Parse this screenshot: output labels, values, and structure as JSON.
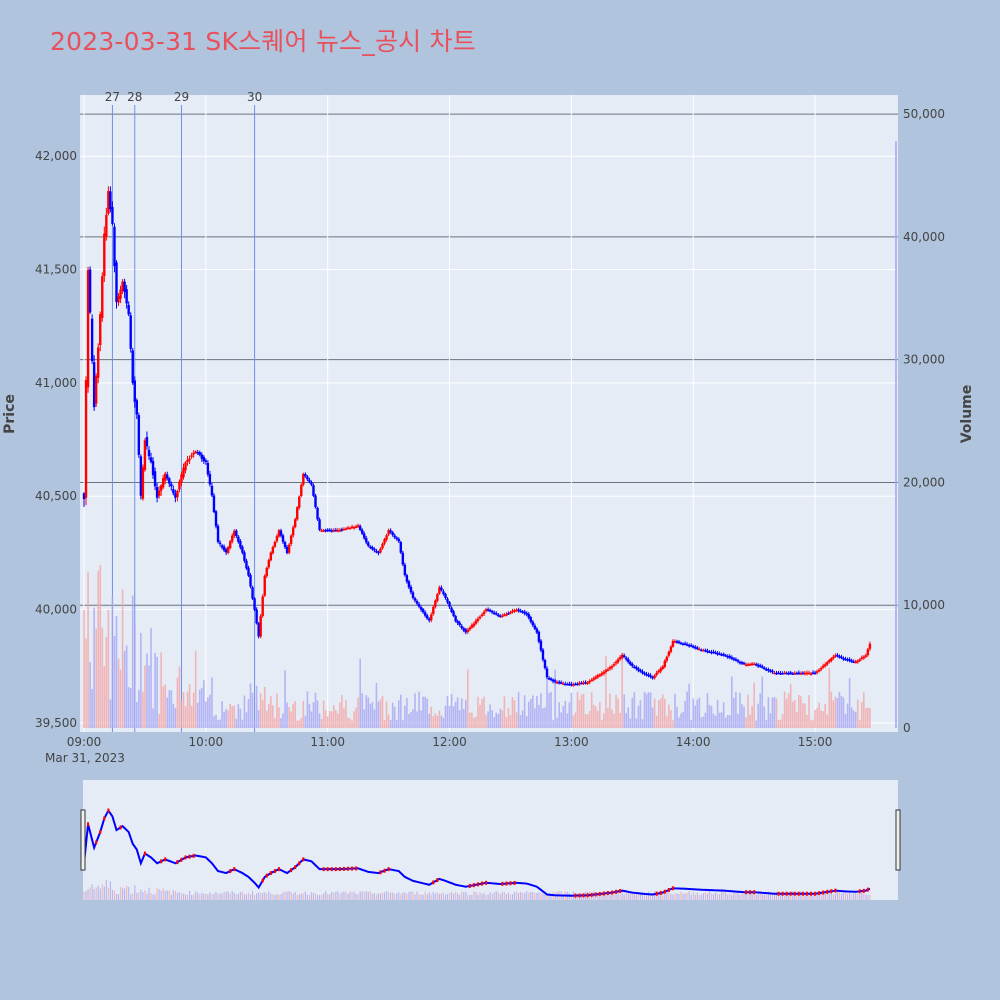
{
  "title": "2023-03-31 SK스퀘어 뉴스_공시 차트",
  "colors": {
    "background": "#b0c4de",
    "plot_bg": "#e5ecf6",
    "up": "#ff0000",
    "down": "#0000ff",
    "event_line": "#6f8fe8",
    "title": "#e8505b"
  },
  "chart_data": {
    "type": "candlestick",
    "xlabel": "",
    "ylabel": "Price",
    "y2label": "Volume",
    "date_label": "Mar 31, 2023",
    "x_range": [
      "09:00",
      "15:30"
    ],
    "y_range": [
      39460,
      42270
    ],
    "y2_range": [
      0,
      50500
    ],
    "x_ticks": [
      "09:00",
      "10:00",
      "11:00",
      "12:00",
      "13:00",
      "14:00",
      "15:00"
    ],
    "y_ticks": [
      39500,
      40000,
      40500,
      41000,
      41500,
      42000
    ],
    "y_tick_labels": [
      "39,500",
      "40,000",
      "40,500",
      "41,000",
      "41,500",
      "42,000"
    ],
    "y2_ticks": [
      0,
      10000,
      20000,
      30000,
      40000,
      50000
    ],
    "y2_tick_labels": [
      "0",
      "10,000",
      "20,000",
      "30,000",
      "40,000",
      "50,000"
    ],
    "events": [
      {
        "label": "27",
        "time": "09:14"
      },
      {
        "label": "28",
        "time": "09:25"
      },
      {
        "label": "29",
        "time": "09:48"
      },
      {
        "label": "30",
        "time": "10:24"
      }
    ],
    "price_path": [
      [
        "09:00",
        40500
      ],
      [
        "09:02",
        41500
      ],
      [
        "09:05",
        40900
      ],
      [
        "09:08",
        41300
      ],
      [
        "09:10",
        41650
      ],
      [
        "09:12",
        41850
      ],
      [
        "09:14",
        41700
      ],
      [
        "09:16",
        41350
      ],
      [
        "09:19",
        41450
      ],
      [
        "09:22",
        41300
      ],
      [
        "09:24",
        41000
      ],
      [
        "09:26",
        40850
      ],
      [
        "09:28",
        40500
      ],
      [
        "09:30",
        40750
      ],
      [
        "09:33",
        40650
      ],
      [
        "09:36",
        40500
      ],
      [
        "09:40",
        40600
      ],
      [
        "09:45",
        40500
      ],
      [
        "09:50",
        40650
      ],
      [
        "09:55",
        40700
      ],
      [
        "10:00",
        40650
      ],
      [
        "10:03",
        40500
      ],
      [
        "10:06",
        40300
      ],
      [
        "10:10",
        40250
      ],
      [
        "10:14",
        40350
      ],
      [
        "10:18",
        40250
      ],
      [
        "10:21",
        40150
      ],
      [
        "10:24",
        40000
      ],
      [
        "10:26",
        39880
      ],
      [
        "10:29",
        40150
      ],
      [
        "10:32",
        40250
      ],
      [
        "10:36",
        40350
      ],
      [
        "10:40",
        40250
      ],
      [
        "10:44",
        40400
      ],
      [
        "10:48",
        40600
      ],
      [
        "10:52",
        40550
      ],
      [
        "10:56",
        40350
      ],
      [
        "11:05",
        40350
      ],
      [
        "11:15",
        40370
      ],
      [
        "11:20",
        40280
      ],
      [
        "11:25",
        40250
      ],
      [
        "11:30",
        40350
      ],
      [
        "11:35",
        40300
      ],
      [
        "11:38",
        40150
      ],
      [
        "11:42",
        40050
      ],
      [
        "11:46",
        40000
      ],
      [
        "11:50",
        39950
      ],
      [
        "11:55",
        40100
      ],
      [
        "11:58",
        40050
      ],
      [
        "12:03",
        39950
      ],
      [
        "12:08",
        39900
      ],
      [
        "12:13",
        39950
      ],
      [
        "12:18",
        40000
      ],
      [
        "12:25",
        39970
      ],
      [
        "12:33",
        40000
      ],
      [
        "12:38",
        39980
      ],
      [
        "12:43",
        39900
      ],
      [
        "12:48",
        39700
      ],
      [
        "12:52",
        39680
      ],
      [
        "13:00",
        39670
      ],
      [
        "13:08",
        39680
      ],
      [
        "13:15",
        39720
      ],
      [
        "13:20",
        39750
      ],
      [
        "13:25",
        39800
      ],
      [
        "13:30",
        39750
      ],
      [
        "13:35",
        39720
      ],
      [
        "13:40",
        39700
      ],
      [
        "13:45",
        39750
      ],
      [
        "13:50",
        39860
      ],
      [
        "13:55",
        39850
      ],
      [
        "14:05",
        39820
      ],
      [
        "14:15",
        39800
      ],
      [
        "14:25",
        39760
      ],
      [
        "14:30",
        39760
      ],
      [
        "14:35",
        39740
      ],
      [
        "14:40",
        39720
      ],
      [
        "14:50",
        39720
      ],
      [
        "15:00",
        39720
      ],
      [
        "15:05",
        39760
      ],
      [
        "15:10",
        39800
      ],
      [
        "15:15",
        39780
      ],
      [
        "15:20",
        39770
      ],
      [
        "15:25",
        39800
      ],
      [
        "15:27",
        39850
      ]
    ]
  }
}
